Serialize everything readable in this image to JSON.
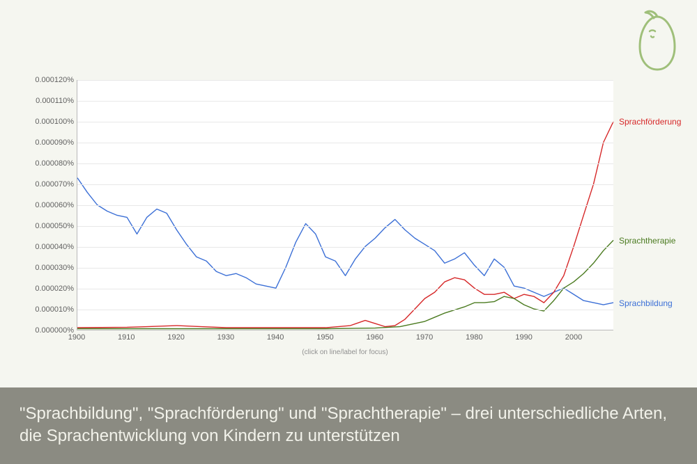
{
  "background_color": "#f5f6f0",
  "logo": {
    "stroke": "#9fbf7a",
    "stroke_width": 3
  },
  "chart": {
    "type": "line",
    "plot_background": "#ffffff",
    "grid_color": "#e8e8e8",
    "axis_color": "#b8b8b8",
    "tick_color": "#606060",
    "tick_fontsize": 11,
    "y_label_suffix": "%",
    "ylim": [
      0,
      0.00012
    ],
    "ytick_step": 1e-05,
    "y_ticks": [
      "0.000000%",
      "0.000010%",
      "0.000020%",
      "0.000030%",
      "0.000040%",
      "0.000050%",
      "0.000060%",
      "0.000070%",
      "0.000080%",
      "0.000090%",
      "0.000100%",
      "0.000110%",
      "0.000120%"
    ],
    "xlim": [
      1900,
      2008
    ],
    "x_ticks": [
      1900,
      1910,
      1920,
      1930,
      1940,
      1950,
      1960,
      1970,
      1980,
      1990,
      2000
    ],
    "hint_text": "(click on line/label for focus)",
    "line_width": 1.4,
    "series": [
      {
        "name": "Sprachbildung",
        "label": "Sprachbildung",
        "color": "#3b6fd6",
        "x": [
          1900,
          1902,
          1904,
          1906,
          1908,
          1910,
          1912,
          1914,
          1916,
          1918,
          1920,
          1922,
          1924,
          1926,
          1928,
          1930,
          1932,
          1934,
          1936,
          1938,
          1940,
          1942,
          1944,
          1946,
          1948,
          1950,
          1952,
          1954,
          1956,
          1958,
          1960,
          1962,
          1964,
          1966,
          1968,
          1970,
          1972,
          1974,
          1976,
          1978,
          1980,
          1982,
          1984,
          1986,
          1988,
          1990,
          1992,
          1994,
          1996,
          1998,
          2000,
          2002,
          2004,
          2006,
          2008
        ],
        "y": [
          7.3e-05,
          6.6e-05,
          6e-05,
          5.7e-05,
          5.5e-05,
          5.4e-05,
          4.6e-05,
          5.4e-05,
          5.8e-05,
          5.6e-05,
          4.8e-05,
          4.1e-05,
          3.5e-05,
          3.3e-05,
          2.8e-05,
          2.6e-05,
          2.7e-05,
          2.5e-05,
          2.2e-05,
          2.1e-05,
          2e-05,
          3e-05,
          4.2e-05,
          5.1e-05,
          4.6e-05,
          3.5e-05,
          3.3e-05,
          2.6e-05,
          3.4e-05,
          4e-05,
          4.4e-05,
          4.9e-05,
          5.3e-05,
          4.8e-05,
          4.4e-05,
          4.1e-05,
          3.8e-05,
          3.2e-05,
          3.4e-05,
          3.7e-05,
          3.1e-05,
          2.6e-05,
          3.4e-05,
          3e-05,
          2.1e-05,
          2e-05,
          1.8e-05,
          1.6e-05,
          1.8e-05,
          2e-05,
          1.7e-05,
          1.4e-05,
          1.3e-05,
          1.2e-05,
          1.3e-05
        ]
      },
      {
        "name": "Sprachfoerderung",
        "label": "Sprachförderung",
        "color": "#d62728",
        "x": [
          1900,
          1910,
          1914,
          1920,
          1925,
          1930,
          1940,
          1950,
          1955,
          1958,
          1960,
          1962,
          1964,
          1966,
          1968,
          1970,
          1972,
          1974,
          1976,
          1978,
          1980,
          1982,
          1984,
          1986,
          1988,
          1990,
          1992,
          1994,
          1996,
          1998,
          2000,
          2002,
          2004,
          2006,
          2008
        ],
        "y": [
          1e-06,
          1.2e-06,
          1.5e-06,
          2e-06,
          1.5e-06,
          1e-06,
          1e-06,
          1e-06,
          2e-06,
          4.5e-06,
          3e-06,
          1.5e-06,
          2e-06,
          5e-06,
          1e-05,
          1.5e-05,
          1.8e-05,
          2.3e-05,
          2.5e-05,
          2.4e-05,
          2e-05,
          1.7e-05,
          1.7e-05,
          1.8e-05,
          1.5e-05,
          1.7e-05,
          1.6e-05,
          1.3e-05,
          1.8e-05,
          2.6e-05,
          4e-05,
          5.5e-05,
          7e-05,
          9e-05,
          0.0001
        ]
      },
      {
        "name": "Sprachtherapie",
        "label": "Sprachtherapie",
        "color": "#4a7a1f",
        "x": [
          1900,
          1930,
          1950,
          1960,
          1965,
          1970,
          1972,
          1974,
          1976,
          1978,
          1980,
          1982,
          1984,
          1986,
          1988,
          1990,
          1992,
          1994,
          1996,
          1998,
          2000,
          2002,
          2004,
          2006,
          2008
        ],
        "y": [
          5e-07,
          5e-07,
          5e-07,
          8e-07,
          1.5e-06,
          4e-06,
          6e-06,
          8e-06,
          9.5e-06,
          1.1e-05,
          1.3e-05,
          1.3e-05,
          1.35e-05,
          1.6e-05,
          1.5e-05,
          1.2e-05,
          1e-05,
          9e-06,
          1.4e-05,
          2e-05,
          2.3e-05,
          2.7e-05,
          3.2e-05,
          3.8e-05,
          4.3e-05
        ]
      }
    ]
  },
  "caption": {
    "text": "\"Sprachbildung\", \"Sprachförderung\" und \"Sprachtherapie\" – drei unterschiedliche Arten, die Sprachentwicklung von Kindern zu unterstützen",
    "background": "#8b8b82",
    "color": "#f2f2ea",
    "fontsize": 24
  }
}
